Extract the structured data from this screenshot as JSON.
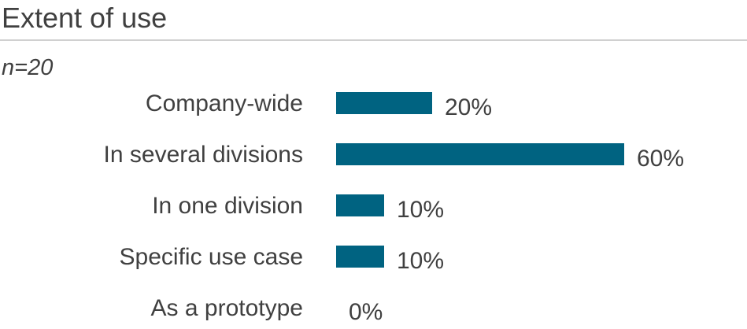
{
  "chart_data": {
    "type": "bar",
    "orientation": "horizontal",
    "title": "Extent of use",
    "subtitle": "n=20",
    "categories": [
      "Company-wide",
      "In several divisions",
      "In one division",
      "Specific use case",
      "As a prototype"
    ],
    "values": [
      20,
      60,
      10,
      10,
      0
    ],
    "value_labels": [
      "20%",
      "60%",
      "10%",
      "10%",
      "0%"
    ],
    "color": "#006381"
  }
}
